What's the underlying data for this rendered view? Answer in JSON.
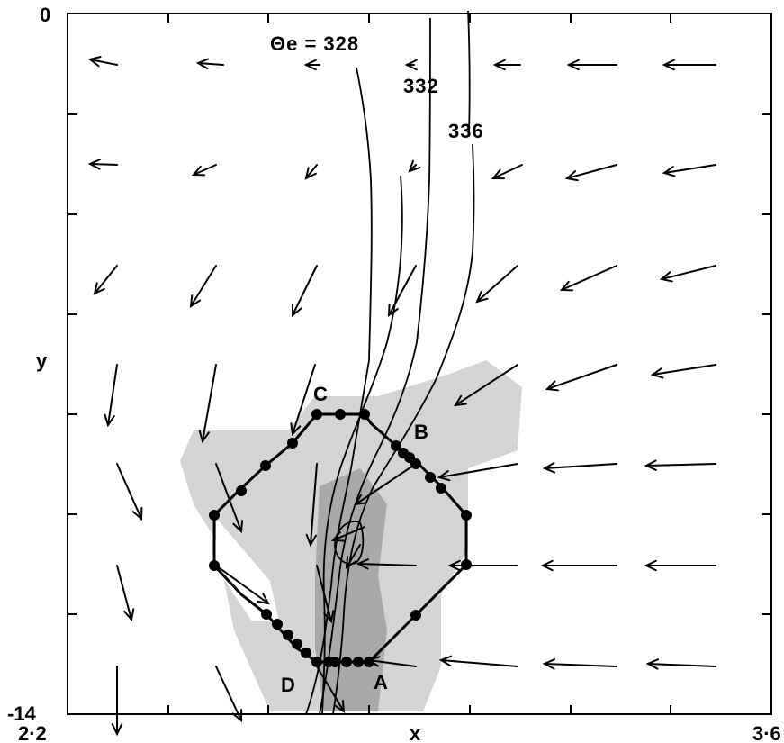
{
  "axes": {
    "y_top": "0",
    "y_bottom": "-14",
    "x_left": "2·2",
    "x_right": "3·6",
    "x_label": "x",
    "y_label": "y"
  },
  "contour_labels": [
    "Θe = 328",
    "332",
    "336"
  ],
  "points": [
    "A",
    "B",
    "C",
    "D"
  ],
  "colors": {
    "ink": "#000000",
    "shade_light": "#d4d4d4",
    "shade_dark": "#a9a9a9"
  }
}
